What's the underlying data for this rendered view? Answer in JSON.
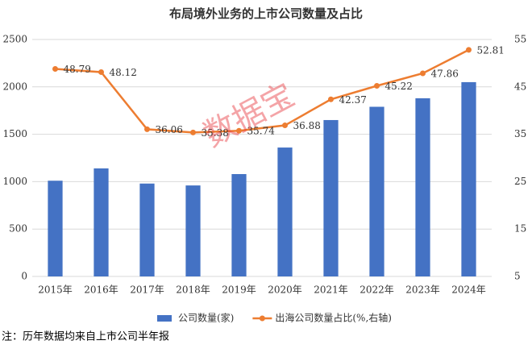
{
  "chart_data": {
    "type": "bar",
    "title": "布局境外业务的上市公司数量及占比",
    "categories": [
      "2015年",
      "2016年",
      "2017年",
      "2018年",
      "2019年",
      "2020年",
      "2021年",
      "2022年",
      "2023年",
      "2024年"
    ],
    "series": [
      {
        "name": "公司数量(家)",
        "type": "bar",
        "color": "#4472c4",
        "values": [
          1010,
          1140,
          980,
          960,
          1080,
          1360,
          1650,
          1790,
          1880,
          2050
        ]
      },
      {
        "name": "出海公司数量占比(%,右轴)",
        "type": "line",
        "axis": "y2",
        "color": "#ed7d31",
        "values": [
          48.79,
          48.12,
          36.06,
          35.38,
          35.74,
          36.88,
          42.37,
          45.22,
          47.86,
          52.81
        ]
      }
    ],
    "ylim": [
      0,
      2500
    ],
    "yticks": [
      0,
      500,
      1000,
      1500,
      2000,
      2500
    ],
    "y2lim": [
      5,
      55
    ],
    "y2ticks": [
      5,
      15,
      25,
      35,
      45,
      55
    ],
    "grid": true,
    "legend": "bottom",
    "watermark": "数据宝",
    "note": "注：历年数据均来自上市公司半年报"
  }
}
